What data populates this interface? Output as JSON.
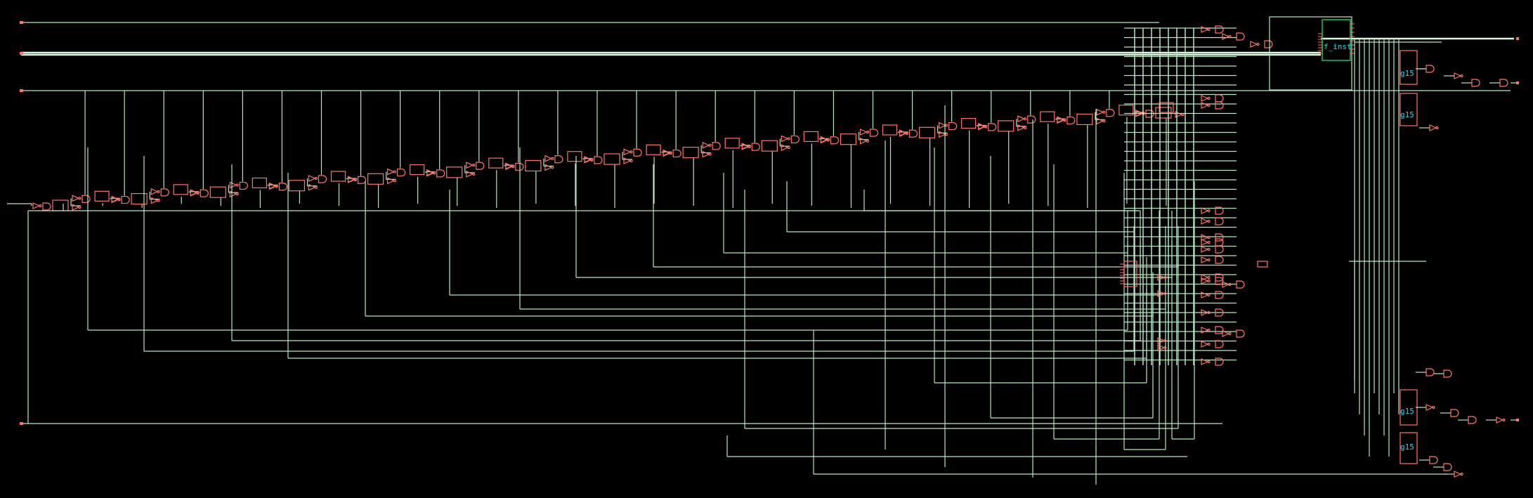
{
  "schematic": {
    "view": "netlist schematic",
    "colors": {
      "background": "#000000",
      "wire": "#b5e8bf",
      "bus": "#d6f5d9",
      "cell": "#ff7468",
      "hier_block": "#22c35a",
      "instance_label": "#20d8ee"
    },
    "instances": {
      "top_block": "f_inst",
      "right_cells": [
        "g15",
        "g15",
        "g15",
        "g15"
      ]
    }
  }
}
